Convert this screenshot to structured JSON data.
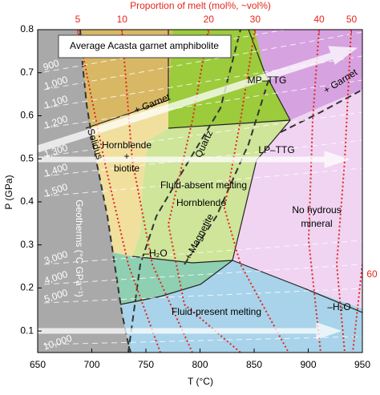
{
  "chart_data": {
    "type": "phase-diagram",
    "title": "Average Acasta garnet amphibolite",
    "xlabel": "T (°C)",
    "ylabel": "P (GPa)",
    "top_axis_title": "Proportion of melt (mol%, ~vol%)",
    "xlim": [
      650,
      950
    ],
    "xticks": [
      650,
      700,
      750,
      800,
      850,
      900,
      950
    ],
    "ylim": [
      0.05,
      0.8
    ],
    "yticks": [
      0.1,
      0.2,
      0.3,
      0.4,
      0.5,
      0.6,
      0.7,
      0.8
    ],
    "melt_ticks": [
      {
        "melt": 5,
        "T": 687
      },
      {
        "melt": 10,
        "T": 728
      },
      {
        "melt": 20,
        "T": 808
      },
      {
        "melt": 30,
        "T": 851
      },
      {
        "melt": 40,
        "T": 910
      },
      {
        "melt": 50,
        "T": 940
      }
    ],
    "melt_color": "#e3261b",
    "geotherm_labels": [
      "900",
      "1,000",
      "1,100",
      "1,200",
      "1,300",
      "1,400",
      "1,500",
      "3,000",
      "4,000",
      "5,000",
      "10,000"
    ],
    "geotherm_title": "Geotherms (°C GPa⁻¹)",
    "annotations": [
      "MP–TTG",
      "LP–TTG",
      "+ Garnet",
      "+ Garnet",
      "Solidus",
      "Hornblende",
      "+",
      "biotite",
      "Quartz",
      "Fluid-absent melting",
      "Hornblende",
      "+ Magnetite",
      "–H₂O",
      "No hydrous",
      "mineral",
      "Fluid-present melting",
      "–H₂O",
      "60"
    ]
  }
}
